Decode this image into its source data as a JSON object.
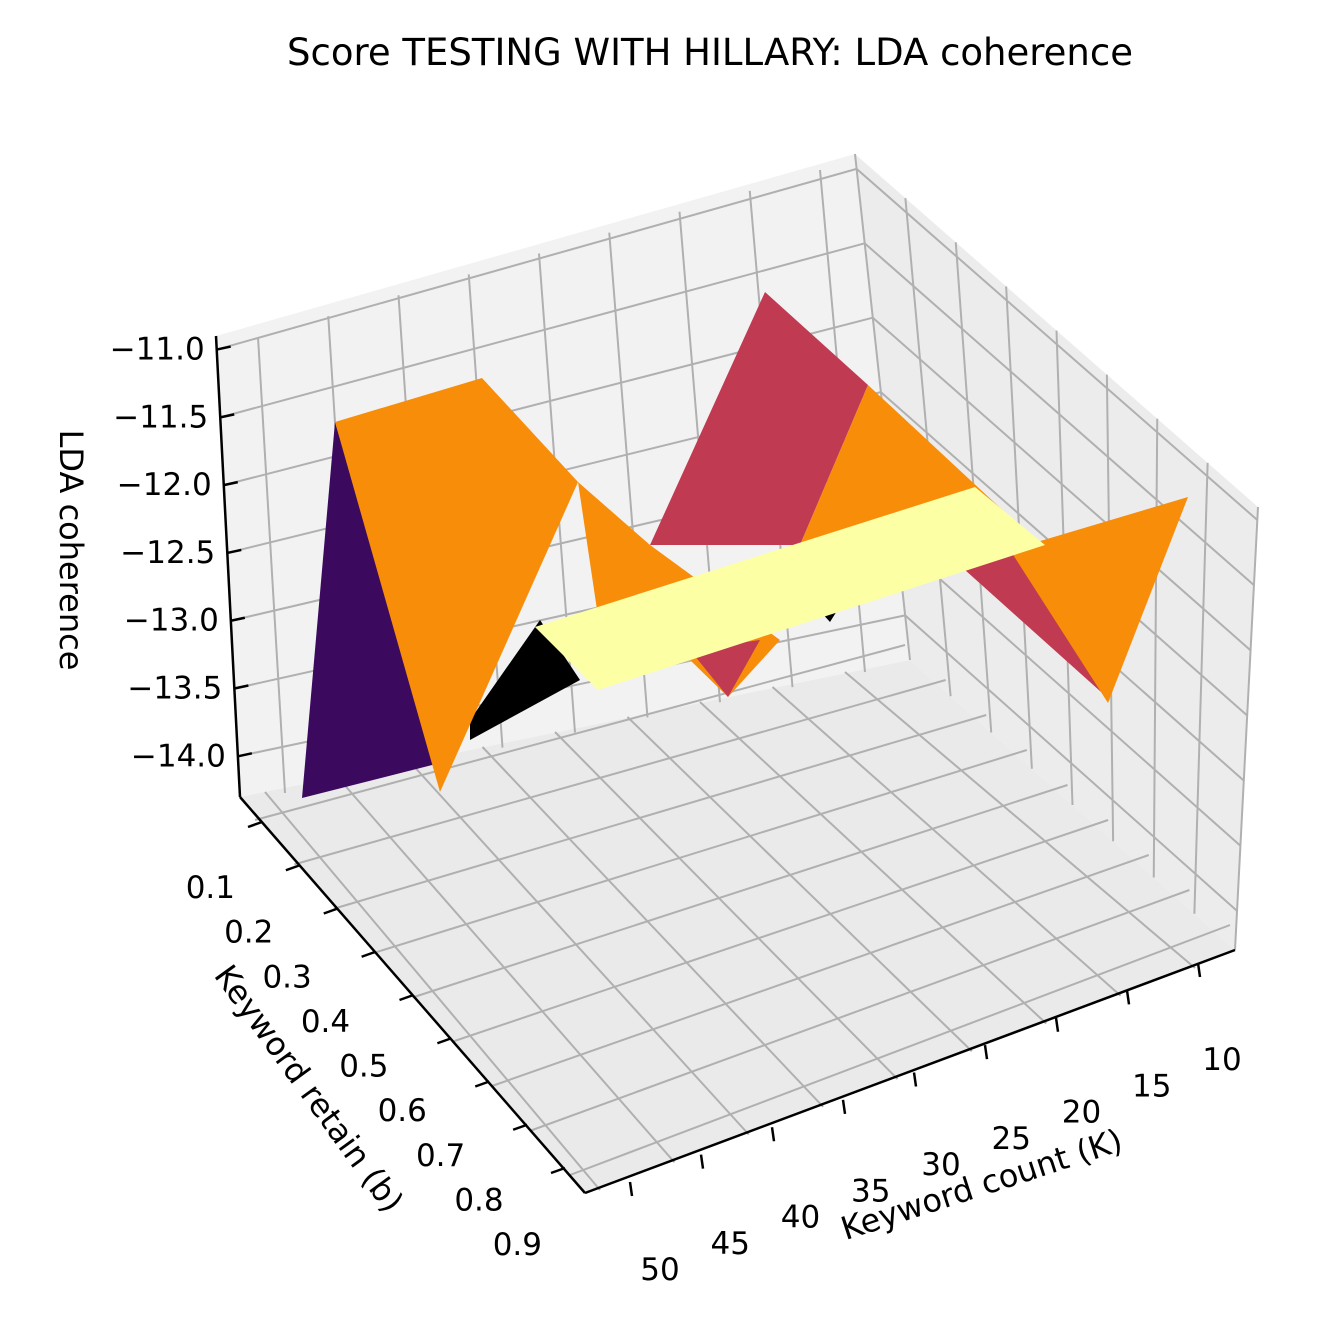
{
  "chart_data": {
    "type": "surface3d",
    "title": "Score TESTING WITH HILLARY: LDA coherence",
    "xlabel": "Keyword count (K)",
    "ylabel": "Keyword retain (b)",
    "zlabel": "LDA coherence",
    "x_ticks": [
      "10",
      "15",
      "20",
      "25",
      "30",
      "35",
      "40",
      "45",
      "50"
    ],
    "y_ticks": [
      "0.1",
      "0.2",
      "0.3",
      "0.4",
      "0.5",
      "0.6",
      "0.7",
      "0.8",
      "0.9"
    ],
    "z_ticks": [
      "−14.0",
      "−13.5",
      "−13.0",
      "−12.5",
      "−12.0",
      "−11.5",
      "−11.0"
    ],
    "zlim": [
      -14.3,
      -10.9
    ],
    "colormap": "inferno",
    "colors": {
      "dark_purple": "#3b0a5e",
      "orange": "#f88d0a",
      "crimson": "#c03a51",
      "pale_yellow": "#fcffa4",
      "black": "#000000",
      "pane": "#f2f2f2",
      "grid": "#b0b0b0"
    },
    "grid": true,
    "legend": "none"
  }
}
